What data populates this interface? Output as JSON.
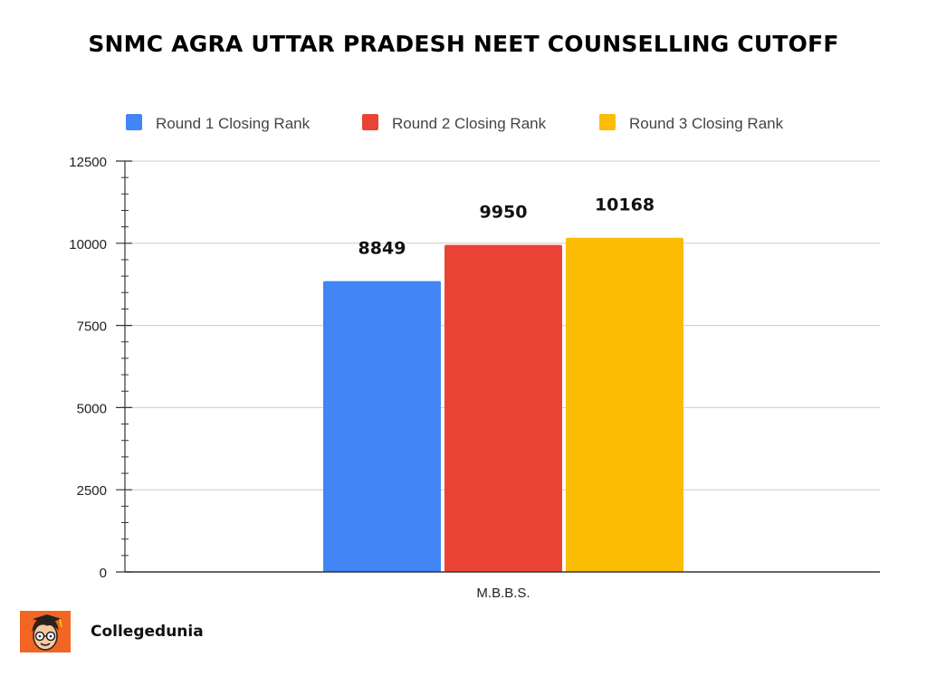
{
  "chart_data": {
    "type": "bar",
    "title": "SNMC AGRA UTTAR PRADESH NEET COUNSELLING CUTOFF",
    "categories": [
      "M.B.B.S."
    ],
    "series": [
      {
        "name": "Round 1 Closing Rank",
        "values": [
          8849
        ],
        "color": "#4285f4"
      },
      {
        "name": "Round 2 Closing Rank",
        "values": [
          9950
        ],
        "color": "#ea4335"
      },
      {
        "name": "Round 3 Closing Rank",
        "values": [
          10168
        ],
        "color": "#fbbc04"
      }
    ],
    "ylim": [
      0,
      12500
    ],
    "yticks": [
      0,
      2500,
      5000,
      7500,
      10000,
      12500
    ],
    "data_labels": [
      "8849",
      "9950",
      "10168"
    ],
    "legend": "top",
    "grid": true,
    "xlabel": "",
    "ylabel": ""
  },
  "brand": {
    "name": "Collegedunia",
    "logo_icon": "cartoon-student-logo-icon",
    "logo_color": "#f26522"
  }
}
